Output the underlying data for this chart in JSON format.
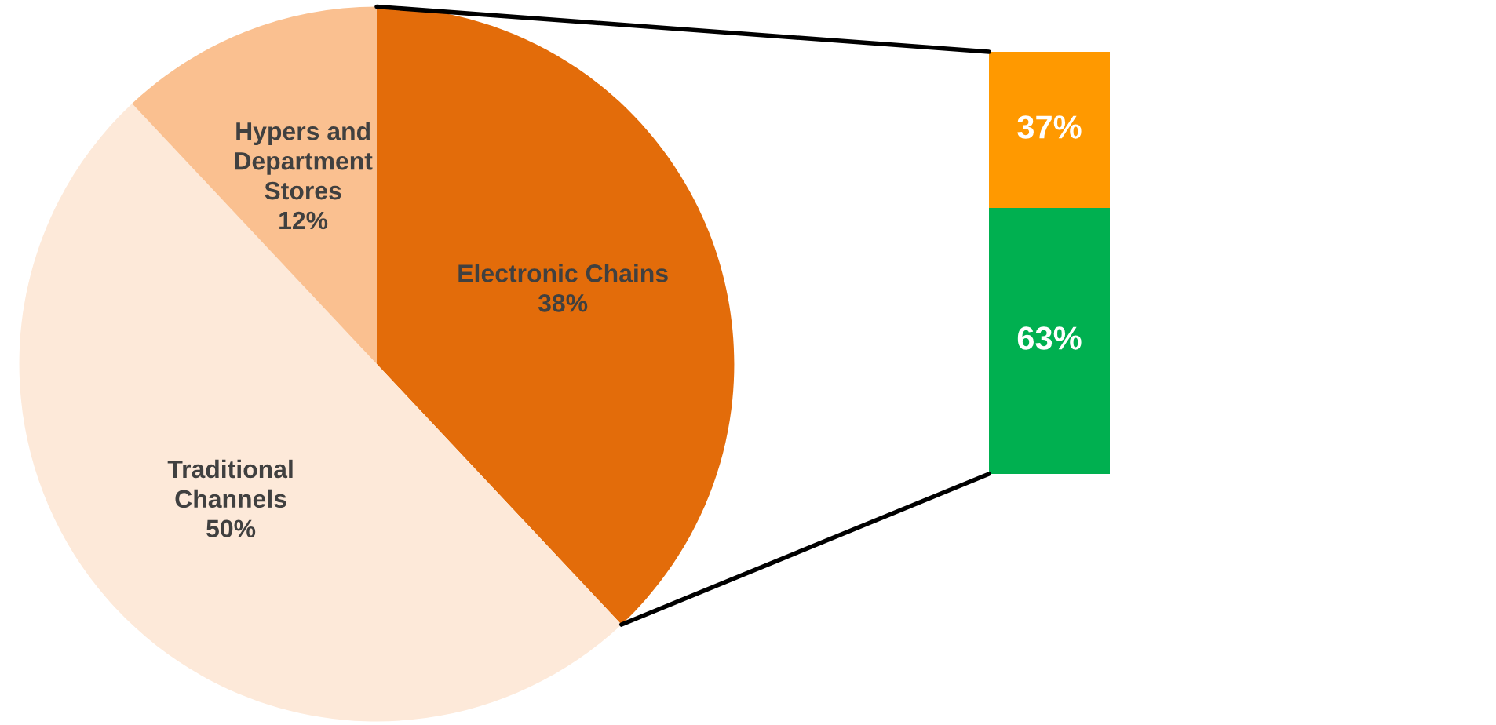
{
  "chart_data": [
    {
      "type": "pie",
      "categories": [
        "Electronic Chains",
        "Traditional\nChannels",
        "Hypers and\nDepartment\nStores"
      ],
      "values": [
        38,
        50,
        12
      ],
      "value_labels": [
        "38%",
        "50%",
        "12%"
      ],
      "colors": [
        "#e36c0a",
        "#fde9d9",
        "#fac090"
      ]
    },
    {
      "type": "bar",
      "categories": [
        null
      ],
      "stacked": true,
      "series": [
        {
          "color": "#00b050",
          "values": [
            63
          ],
          "value_labels": [
            "63%"
          ]
        },
        {
          "color": "#ff9900",
          "values": [
            37
          ],
          "value_labels": [
            "37%"
          ]
        }
      ]
    }
  ]
}
